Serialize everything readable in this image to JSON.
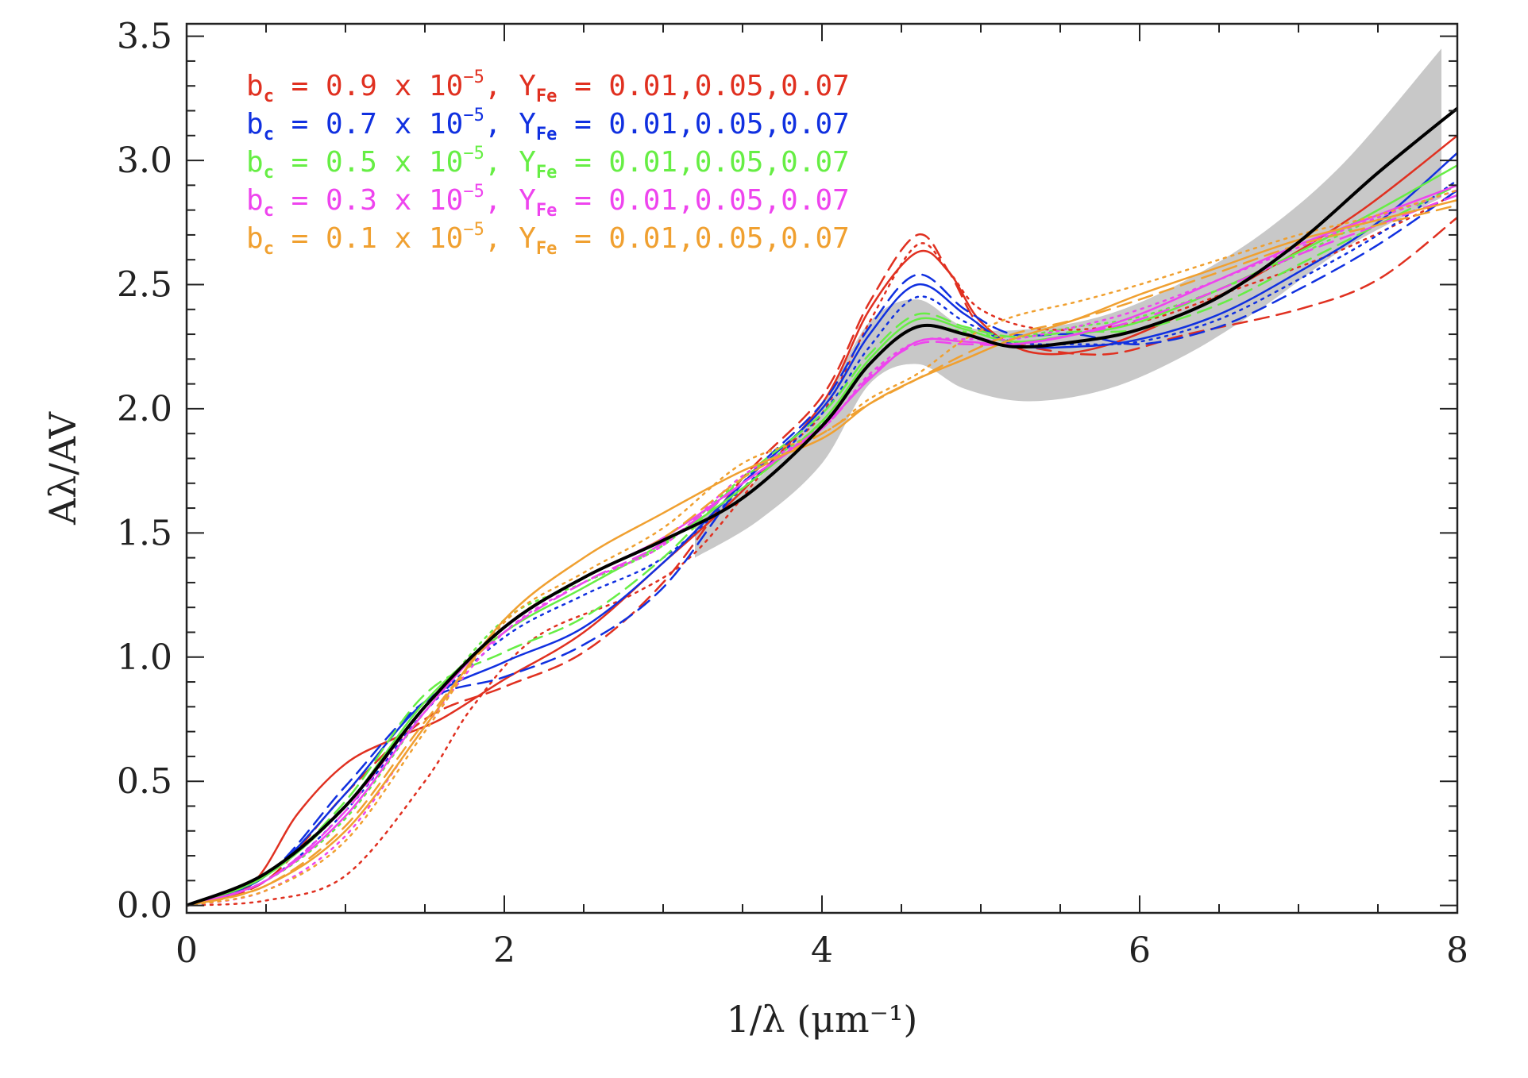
{
  "chart_data": {
    "type": "line",
    "xlabel": "1/λ (μm⁻¹)",
    "ylabel": "Aλ/AV",
    "xlim": [
      0,
      8
    ],
    "ylim": [
      -0.03,
      3.55
    ],
    "x_ticks": [
      0,
      2,
      4,
      6,
      8
    ],
    "x_tick_labels": [
      "0",
      "2",
      "4",
      "6",
      "8"
    ],
    "y_ticks": [
      0.0,
      0.5,
      1.0,
      1.5,
      2.0,
      2.5,
      3.0,
      3.5
    ],
    "y_tick_labels": [
      "0.0",
      "0.5",
      "1.0",
      "1.5",
      "2.0",
      "2.5",
      "3.0",
      "3.5"
    ],
    "legend": {
      "placement": "top-left",
      "entries": [
        {
          "prefix": "b",
          "sub1": "c",
          "mid": " = 0.9 x 10",
          "sup": "−5",
          "mid2": ", Y",
          "sub2": "Fe",
          "tail": " = 0.01,0.05,0.07",
          "color": "#e03020"
        },
        {
          "prefix": "b",
          "sub1": "c",
          "mid": " = 0.7 x 10",
          "sup": "−5",
          "mid2": ", Y",
          "sub2": "Fe",
          "tail": " = 0.01,0.05,0.07",
          "color": "#1030e0"
        },
        {
          "prefix": "b",
          "sub1": "c",
          "mid": " = 0.5 x 10",
          "sup": "−5",
          "mid2": ", Y",
          "sub2": "Fe",
          "tail": " = 0.01,0.05,0.07",
          "color": "#66ee44"
        },
        {
          "prefix": "b",
          "sub1": "c",
          "mid": " = 0.3 x 10",
          "sup": "−5",
          "mid2": ", Y",
          "sub2": "Fe",
          "tail": " = 0.01,0.05,0.07",
          "color": "#ee44ee"
        },
        {
          "prefix": "b",
          "sub1": "c",
          "mid": " = 0.1 x 10",
          "sup": "−5",
          "mid2": ", Y",
          "sub2": "Fe",
          "tail": " = 0.01,0.05,0.07",
          "color": "#f0a030"
        }
      ]
    },
    "band": {
      "color": "#c8c8c8",
      "x": [
        3.2,
        3.6,
        4.0,
        4.3,
        4.6,
        4.9,
        5.3,
        5.8,
        6.3,
        6.8,
        7.3,
        7.9
      ],
      "upper": [
        1.55,
        1.72,
        2.02,
        2.35,
        2.44,
        2.33,
        2.32,
        2.38,
        2.52,
        2.72,
        3.0,
        3.45
      ],
      "lower": [
        1.4,
        1.55,
        1.78,
        2.1,
        2.18,
        2.08,
        2.03,
        2.08,
        2.22,
        2.42,
        2.65,
        2.85
      ]
    },
    "series": [
      {
        "color": "#000000",
        "style": "solid",
        "width": 4,
        "x": [
          0,
          0.5,
          1.0,
          1.5,
          2.0,
          2.5,
          3.0,
          3.5,
          4.0,
          4.3,
          4.6,
          4.9,
          5.2,
          5.6,
          6.0,
          6.5,
          7.0,
          7.5,
          8.0
        ],
        "y": [
          0.0,
          0.13,
          0.4,
          0.8,
          1.12,
          1.32,
          1.47,
          1.64,
          1.93,
          2.18,
          2.33,
          2.3,
          2.25,
          2.27,
          2.32,
          2.45,
          2.67,
          2.95,
          3.21
        ]
      },
      {
        "color": "#e03020",
        "style": "solid",
        "width": 2.5,
        "x": [
          0,
          0.4,
          0.7,
          1.0,
          1.3,
          1.6,
          2.0,
          2.5,
          3.0,
          3.5,
          4.0,
          4.3,
          4.6,
          4.8,
          5.0,
          5.3,
          5.7,
          6.2,
          6.8,
          7.4,
          8.0
        ],
        "y": [
          0.0,
          0.08,
          0.37,
          0.57,
          0.67,
          0.75,
          0.91,
          1.1,
          1.38,
          1.67,
          2.02,
          2.4,
          2.63,
          2.55,
          2.35,
          2.23,
          2.24,
          2.36,
          2.56,
          2.8,
          3.1
        ]
      },
      {
        "color": "#e03020",
        "style": "dashed",
        "width": 2.5,
        "x": [
          0,
          0.5,
          1.0,
          1.5,
          2.0,
          2.5,
          3.0,
          3.5,
          4.0,
          4.3,
          4.6,
          4.8,
          5.0,
          5.3,
          5.8,
          6.3,
          7.0,
          7.5,
          8.0
        ],
        "y": [
          0.0,
          0.1,
          0.45,
          0.75,
          0.88,
          1.02,
          1.3,
          1.72,
          2.05,
          2.43,
          2.7,
          2.55,
          2.33,
          2.25,
          2.22,
          2.3,
          2.4,
          2.52,
          2.77
        ]
      },
      {
        "color": "#e03020",
        "style": "dotted",
        "width": 2.5,
        "x": [
          0,
          0.5,
          1.0,
          1.5,
          1.8,
          2.2,
          2.8,
          3.2,
          3.7,
          4.0,
          4.3,
          4.6,
          4.8,
          5.0,
          5.4,
          6.0,
          6.6,
          7.2,
          7.8,
          8.0
        ],
        "y": [
          0.0,
          0.02,
          0.12,
          0.5,
          0.8,
          1.08,
          1.25,
          1.42,
          1.8,
          1.98,
          2.35,
          2.66,
          2.55,
          2.4,
          2.32,
          2.35,
          2.48,
          2.62,
          2.8,
          2.88
        ]
      },
      {
        "color": "#1030e0",
        "style": "solid",
        "width": 2.5,
        "x": [
          0,
          0.5,
          1.0,
          1.5,
          2.0,
          2.5,
          3.0,
          3.5,
          4.0,
          4.3,
          4.6,
          4.9,
          5.2,
          5.6,
          6.0,
          6.5,
          7.0,
          7.5,
          8.0
        ],
        "y": [
          0.0,
          0.12,
          0.45,
          0.82,
          0.98,
          1.12,
          1.38,
          1.7,
          2.0,
          2.3,
          2.5,
          2.38,
          2.26,
          2.25,
          2.28,
          2.38,
          2.55,
          2.75,
          3.03
        ]
      },
      {
        "color": "#1030e0",
        "style": "dashed",
        "width": 2.5,
        "x": [
          0,
          0.5,
          1.0,
          1.5,
          2.0,
          2.5,
          3.0,
          3.5,
          4.0,
          4.3,
          4.6,
          4.9,
          5.2,
          5.6,
          6.0,
          6.5,
          7.0,
          7.5,
          8.0
        ],
        "y": [
          0.0,
          0.12,
          0.48,
          0.82,
          0.92,
          1.05,
          1.28,
          1.7,
          2.02,
          2.33,
          2.54,
          2.4,
          2.3,
          2.3,
          2.26,
          2.33,
          2.48,
          2.66,
          2.88
        ]
      },
      {
        "color": "#1030e0",
        "style": "dotted",
        "width": 2.5,
        "x": [
          0,
          0.5,
          1.0,
          1.5,
          2.0,
          2.5,
          3.0,
          3.5,
          4.0,
          4.3,
          4.6,
          4.9,
          5.2,
          5.6,
          6.0,
          6.5,
          7.0,
          7.5,
          8.0
        ],
        "y": [
          0.0,
          0.1,
          0.38,
          0.78,
          1.08,
          1.25,
          1.4,
          1.68,
          1.98,
          2.25,
          2.45,
          2.35,
          2.27,
          2.26,
          2.27,
          2.36,
          2.52,
          2.7,
          2.92
        ]
      },
      {
        "color": "#66ee44",
        "style": "solid",
        "width": 2.5,
        "x": [
          0,
          0.5,
          1.0,
          1.5,
          2.0,
          2.5,
          3.0,
          3.5,
          4.0,
          4.3,
          4.6,
          4.9,
          5.2,
          5.6,
          6.0,
          6.5,
          7.0,
          7.5,
          8.0
        ],
        "y": [
          0.0,
          0.12,
          0.4,
          0.82,
          1.1,
          1.28,
          1.46,
          1.68,
          1.95,
          2.2,
          2.36,
          2.32,
          2.27,
          2.3,
          2.35,
          2.48,
          2.63,
          2.8,
          2.98
        ]
      },
      {
        "color": "#66ee44",
        "style": "dashed",
        "width": 2.5,
        "x": [
          0,
          0.5,
          1.0,
          1.5,
          2.0,
          2.5,
          3.0,
          3.5,
          4.0,
          4.3,
          4.6,
          4.9,
          5.2,
          5.6,
          6.0,
          6.5,
          7.0,
          7.5,
          8.0
        ],
        "y": [
          0.0,
          0.12,
          0.42,
          0.85,
          1.02,
          1.16,
          1.4,
          1.72,
          1.98,
          2.22,
          2.38,
          2.33,
          2.29,
          2.31,
          2.32,
          2.42,
          2.58,
          2.74,
          2.9
        ]
      },
      {
        "color": "#66ee44",
        "style": "dotted",
        "width": 2.5,
        "x": [
          0,
          0.5,
          1.0,
          1.5,
          2.0,
          2.5,
          3.0,
          3.5,
          4.0,
          4.3,
          4.6,
          4.9,
          5.2,
          5.6,
          6.0,
          6.5,
          7.0,
          7.5,
          8.0
        ],
        "y": [
          0.0,
          0.1,
          0.35,
          0.78,
          1.15,
          1.3,
          1.45,
          1.72,
          1.94,
          2.18,
          2.33,
          2.31,
          2.29,
          2.33,
          2.37,
          2.48,
          2.62,
          2.77,
          2.88
        ]
      },
      {
        "color": "#ee44ee",
        "style": "solid",
        "width": 2.5,
        "x": [
          0,
          0.5,
          1.0,
          1.5,
          2.0,
          2.5,
          3.0,
          3.5,
          4.0,
          4.3,
          4.6,
          4.9,
          5.2,
          5.6,
          6.0,
          6.5,
          7.0,
          7.5,
          8.0
        ],
        "y": [
          0.0,
          0.1,
          0.36,
          0.78,
          1.12,
          1.32,
          1.48,
          1.7,
          1.93,
          2.12,
          2.27,
          2.27,
          2.26,
          2.3,
          2.38,
          2.52,
          2.66,
          2.78,
          2.9
        ]
      },
      {
        "color": "#ee44ee",
        "style": "dashed",
        "width": 2.5,
        "x": [
          0,
          0.5,
          1.0,
          1.5,
          2.0,
          2.5,
          3.0,
          3.5,
          4.0,
          4.3,
          4.6,
          4.9,
          5.2,
          5.6,
          6.0,
          6.5,
          7.0,
          7.5,
          8.0
        ],
        "y": [
          0.0,
          0.1,
          0.38,
          0.8,
          1.1,
          1.3,
          1.46,
          1.7,
          1.92,
          2.13,
          2.26,
          2.26,
          2.26,
          2.3,
          2.36,
          2.48,
          2.62,
          2.74,
          2.86
        ]
      },
      {
        "color": "#ee44ee",
        "style": "dotted",
        "width": 2.5,
        "x": [
          0,
          0.5,
          1.0,
          1.5,
          2.0,
          2.5,
          3.0,
          3.5,
          4.0,
          4.3,
          4.6,
          4.9,
          5.2,
          5.6,
          6.0,
          6.5,
          7.0,
          7.5,
          8.0
        ],
        "y": [
          0.0,
          0.06,
          0.28,
          0.72,
          1.1,
          1.3,
          1.45,
          1.73,
          1.92,
          2.14,
          2.27,
          2.28,
          2.28,
          2.33,
          2.4,
          2.52,
          2.65,
          2.77,
          2.88
        ]
      },
      {
        "color": "#f0a030",
        "style": "solid",
        "width": 2.5,
        "x": [
          0,
          0.5,
          1.0,
          1.5,
          2.0,
          2.5,
          3.0,
          3.5,
          4.0,
          4.3,
          4.6,
          4.9,
          5.2,
          5.6,
          6.0,
          6.5,
          7.0,
          7.5,
          8.0
        ],
        "y": [
          0.0,
          0.08,
          0.3,
          0.72,
          1.15,
          1.4,
          1.58,
          1.75,
          1.88,
          2.02,
          2.12,
          2.2,
          2.28,
          2.36,
          2.46,
          2.57,
          2.68,
          2.76,
          2.84
        ]
      },
      {
        "color": "#f0a030",
        "style": "dashed",
        "width": 2.5,
        "x": [
          0,
          0.5,
          1.0,
          1.5,
          2.0,
          2.5,
          3.0,
          3.5,
          4.0,
          4.3,
          4.6,
          4.9,
          5.2,
          5.6,
          6.0,
          6.5,
          7.0,
          7.5,
          8.0
        ],
        "y": [
          0.0,
          0.08,
          0.32,
          0.74,
          1.12,
          1.32,
          1.48,
          1.72,
          1.9,
          2.02,
          2.12,
          2.22,
          2.3,
          2.36,
          2.44,
          2.55,
          2.66,
          2.74,
          2.82
        ]
      },
      {
        "color": "#f0a030",
        "style": "dotted",
        "width": 2.5,
        "x": [
          0,
          0.5,
          1.0,
          1.5,
          2.0,
          2.5,
          3.0,
          3.5,
          4.0,
          4.3,
          4.6,
          4.9,
          5.2,
          5.6,
          6.0,
          6.5,
          7.0,
          7.5,
          8.0
        ],
        "y": [
          0.0,
          0.06,
          0.26,
          0.7,
          1.14,
          1.34,
          1.52,
          1.78,
          1.9,
          2.04,
          2.14,
          2.28,
          2.37,
          2.43,
          2.5,
          2.6,
          2.7,
          2.78,
          2.88
        ]
      }
    ]
  }
}
